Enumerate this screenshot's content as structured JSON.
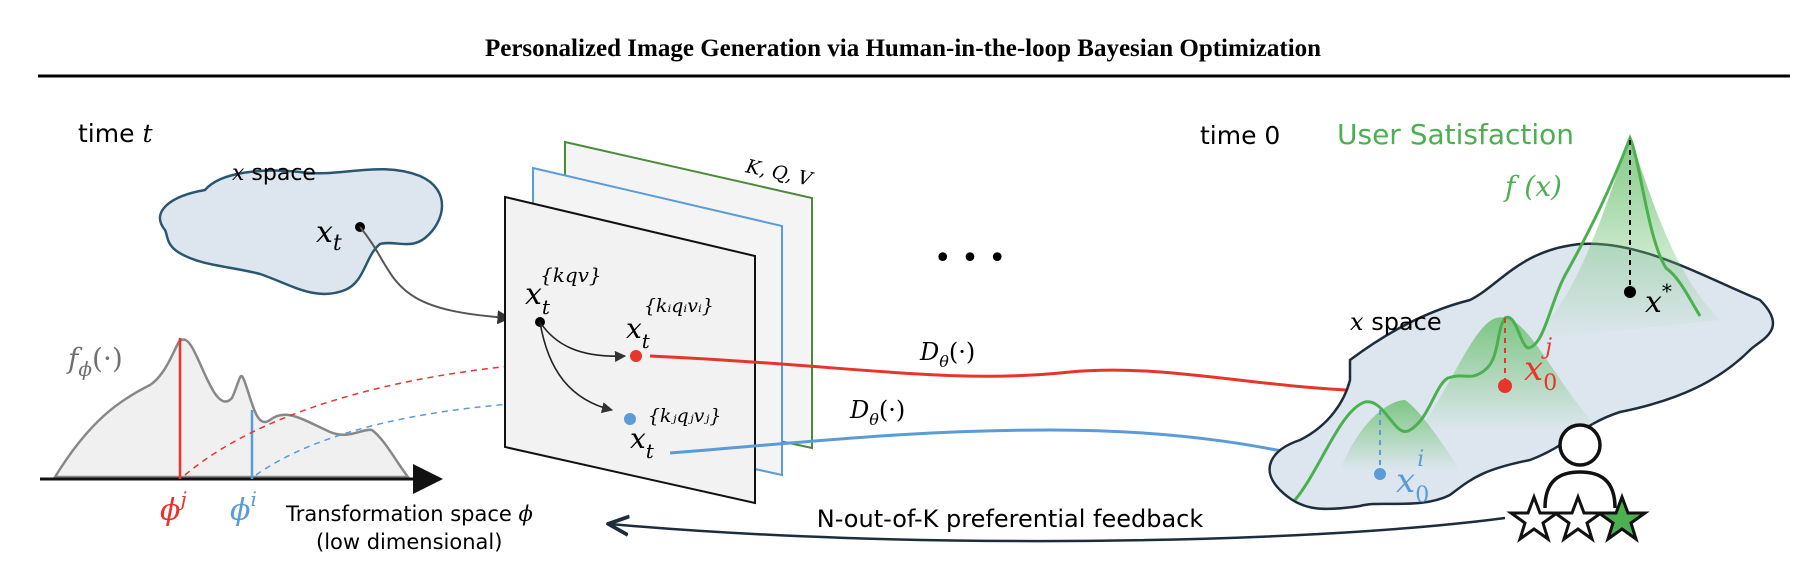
{
  "title": "Personalized Image Generation via Human-in-the-loop Bayesian Optimization",
  "left_panel": {
    "time_label": "time",
    "time_var": "t",
    "space_x": "x",
    "space_label": "space",
    "xt_label": "x",
    "xt_sub": "t",
    "f_phi": "f",
    "f_phi_sub": "ϕ",
    "f_phi_arg": "(·)",
    "phi": "ϕ",
    "phi_j_sup": "j",
    "phi_i_sup": "i",
    "transform_label": "Transformation space",
    "transform_var": "ϕ",
    "transform_sub": "(low dimensional)"
  },
  "middle_panel": {
    "kqv_label": "K, Q, V",
    "x_kqv": "x",
    "x_kqv_sub": "t",
    "x_kqv_sup": "{kqv}",
    "x_kiqivi_sup": "{kᵢqᵢvᵢ}",
    "x_kjqjvj_sup": "{kⱼqⱼvⱼ}",
    "ellipsis": "• • •",
    "decoder_red": "D",
    "decoder_sub": "θ",
    "decoder_arg": "(·)"
  },
  "right_panel": {
    "time_label": "time 0",
    "satisfaction_label": "User Satisfaction",
    "fx_label": "f (x)",
    "space_x": "x",
    "space_label": "space",
    "xstar": "x",
    "xstar_sup": "*",
    "x0": "x",
    "x0_sub": "0",
    "x0_j_sup": "j",
    "x0_i_sup": "i",
    "feedback_label": "N-out-of-K preferential feedback"
  },
  "colors": {
    "red": "#e8342a",
    "blue": "#5b9bd8",
    "green": "#4caf50",
    "dark": "#1e2d3b",
    "space_fill": "#dde6ee"
  }
}
